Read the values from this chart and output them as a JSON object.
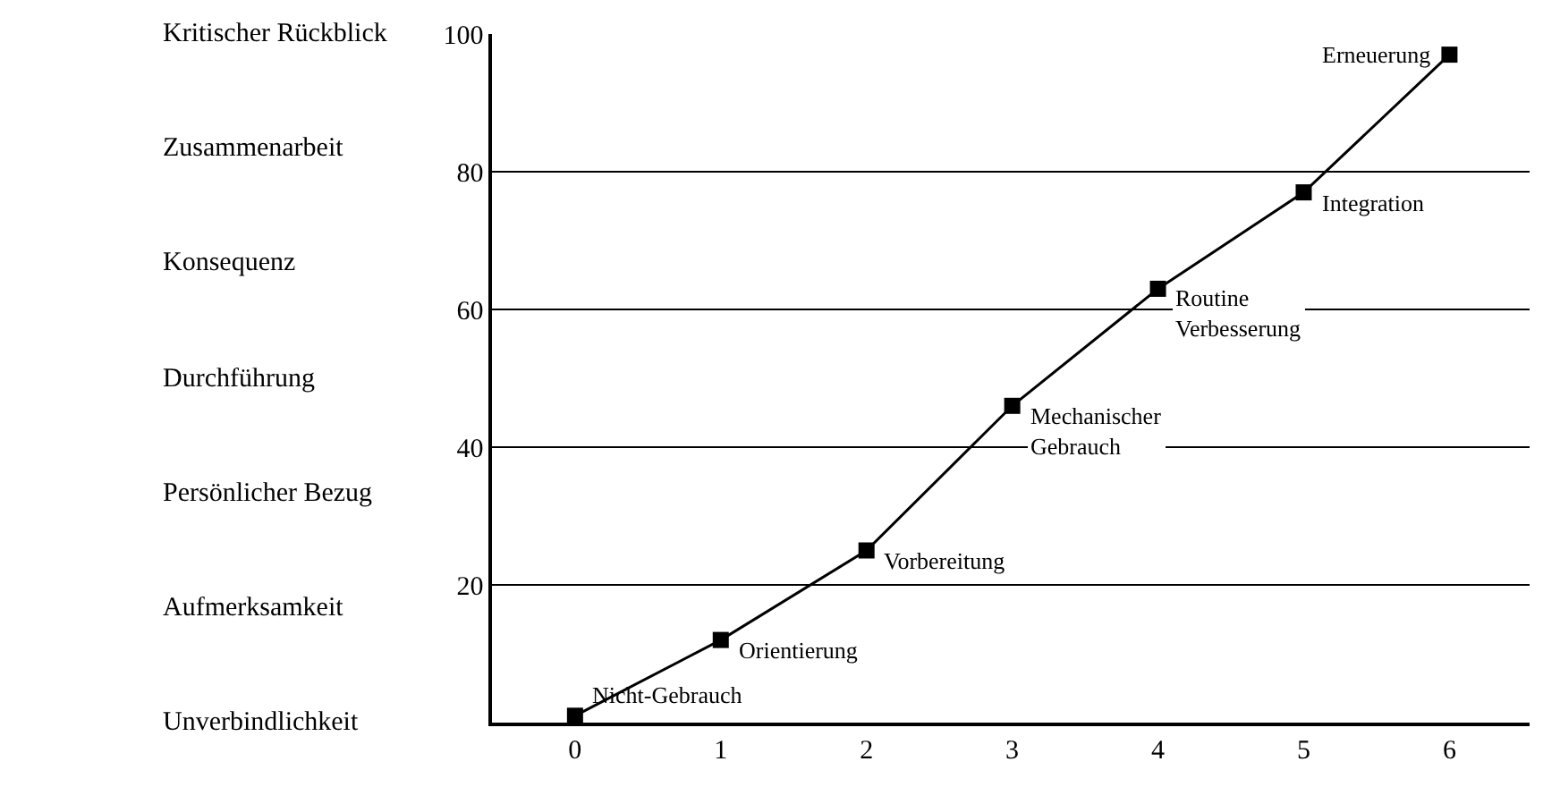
{
  "chart_data": {
    "type": "line",
    "categories": [
      "0",
      "1",
      "2",
      "3",
      "4",
      "5",
      "6"
    ],
    "series": [
      {
        "color": "#000000",
        "values": [
          1,
          12,
          25,
          46,
          63,
          77,
          97
        ]
      }
    ],
    "ylim": [
      0,
      100
    ],
    "yticks": [
      20,
      40,
      60,
      80,
      100
    ],
    "grid": "y",
    "marker": "square",
    "line_style": "solid",
    "annotations": [
      {
        "text": "Nicht-Gebrauch",
        "x": "0",
        "y": 1
      },
      {
        "text": "Orientierung",
        "x": "1",
        "y": 12
      },
      {
        "text": "Vorbereitung",
        "x": "2",
        "y": 25
      },
      {
        "text": "Mechanischer\nGebrauch",
        "x": "3",
        "y": 46
      },
      {
        "text": "Routine\nVerbesserung",
        "x": "4",
        "y": 63
      },
      {
        "text": "Integration",
        "x": "5",
        "y": 77
      },
      {
        "text": "Erneuerung",
        "x": "6",
        "y": 97
      },
      "Kritischer Rückblick",
      "Zusammenarbeit",
      "Konsequenz",
      "Durchführung",
      "Persönlicher Bezug",
      "Aufmerksamkeit",
      "Unverbindlichkeit"
    ]
  }
}
